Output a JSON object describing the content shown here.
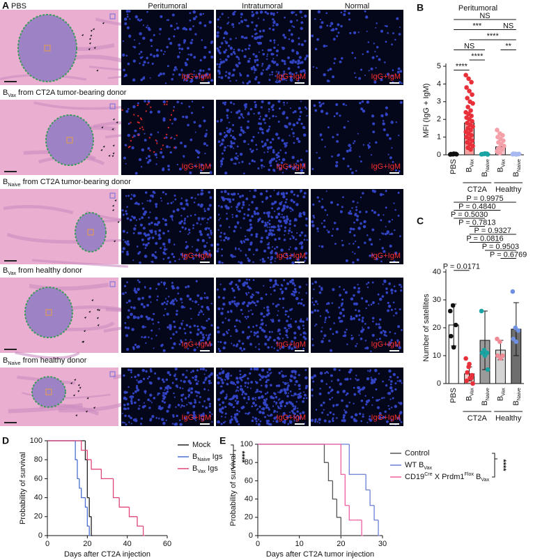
{
  "panel_labels": [
    "A",
    "B",
    "C",
    "D",
    "E"
  ],
  "figure_a": {
    "columns": [
      "Peritumoral",
      "Intratumoral",
      "Normal"
    ],
    "stain_label": "IgG+IgM",
    "rows": [
      [
        {
          "text": "PBS"
        }
      ],
      [
        {
          "text": "B"
        },
        {
          "sub": "Vax"
        },
        {
          "text": " from CT2A tumor-bearing donor"
        }
      ],
      [
        {
          "text": "B"
        },
        {
          "sub": "Naive"
        },
        {
          "text": " from CT2A tumor-bearing donor"
        }
      ],
      [
        {
          "text": "B"
        },
        {
          "sub": "Vax"
        },
        {
          "text": " from healthy donor"
        }
      ],
      [
        {
          "text": "B"
        },
        {
          "sub": "Naive"
        },
        {
          "text": " from healthy donor"
        }
      ]
    ]
  },
  "chart_data": [
    {
      "type": "bar",
      "title": "Peritumoral",
      "y_label": "MFI (IgG + IgM)",
      "categories": [
        [
          {
            "text": "PBS"
          }
        ],
        [
          {
            "text": "B"
          },
          {
            "sub": "Vax"
          }
        ],
        [
          {
            "text": "B"
          },
          {
            "sub": "Naive"
          }
        ],
        [
          {
            "text": "B"
          },
          {
            "sub": "Vax"
          }
        ],
        [
          {
            "text": "B"
          },
          {
            "sub": "Naive"
          }
        ]
      ],
      "groups": [
        "CT2A",
        "Healthy"
      ],
      "values": [
        0.05,
        1.8,
        0.05,
        0.45,
        0.05
      ],
      "colors": [
        "#ffffff",
        "#f3a0a0",
        "#ffffff",
        "#f7c6cc",
        "#ffffff"
      ],
      "point_colors": [
        "#111111",
        "#e8303a",
        "#1aa3a3",
        "#f4a0a8",
        "#a8b8f0"
      ],
      "points": [
        [
          0.02,
          0.03,
          0.05,
          0.04,
          0.06,
          0.03
        ],
        [
          4.5,
          4.3,
          4.1,
          3.8,
          3.6,
          3.4,
          3.2,
          3.0,
          2.9,
          2.7,
          2.5,
          2.4,
          2.3,
          2.2,
          2.1,
          2.0,
          1.9,
          1.8,
          1.7,
          1.6,
          1.5,
          1.4,
          1.3,
          1.2,
          1.1,
          1.0,
          0.9,
          0.8,
          0.7,
          0.6,
          0.5,
          0.4,
          0.3
        ],
        [
          0.03,
          0.05,
          0.06,
          0.04,
          0.07,
          0.02
        ],
        [
          1.4,
          1.2,
          1.1,
          1.0,
          0.9,
          0.8,
          0.7,
          0.6,
          0.5,
          0.4,
          0.3,
          0.2,
          0.1
        ],
        [
          0.03,
          0.05,
          0.04,
          0.06,
          0.02,
          0.05
        ]
      ],
      "significance": [
        "NS",
        "***",
        "****",
        "NS",
        "****",
        "****",
        "NS",
        "**"
      ],
      "ylim": [
        0,
        5
      ],
      "yticks": [
        0,
        1,
        2,
        3,
        4,
        5
      ]
    },
    {
      "type": "bar",
      "y_label": "Number of satellites",
      "categories": [
        [
          {
            "text": "PBS"
          }
        ],
        [
          {
            "text": "B"
          },
          {
            "sub": "Vax"
          }
        ],
        [
          {
            "text": "B"
          },
          {
            "sub": "Naive"
          }
        ],
        [
          {
            "text": "B"
          },
          {
            "sub": "Vax"
          }
        ],
        [
          {
            "text": "B"
          },
          {
            "sub": "Naive"
          }
        ]
      ],
      "groups": [
        "CT2A",
        "Healthy"
      ],
      "values": [
        21,
        3.5,
        15.5,
        12,
        19.5
      ],
      "errors": [
        7.5,
        2.5,
        10.5,
        3.5,
        9.5
      ],
      "colors": [
        "#ffffff",
        "#f5c6c6",
        "#9a9a9a",
        "#d4d4d4",
        "#6e6e6e"
      ],
      "point_colors": [
        "#111111",
        "#e8303a",
        "#1aa3a3",
        "#f08a94",
        "#6f8fe0"
      ],
      "points": [
        [
          26,
          28,
          21,
          17,
          13
        ],
        [
          9,
          6,
          2,
          1,
          7,
          3,
          4,
          2,
          0
        ],
        [
          26,
          12,
          11,
          11,
          10,
          5
        ],
        [
          16,
          15,
          10,
          10,
          9
        ],
        [
          33,
          20,
          19,
          16,
          15
        ]
      ],
      "significance": [
        "P = 0.9975",
        "P = 0.4840",
        "P = 0.5030",
        "P = 0.7813",
        "P = 0.9327",
        "P = 0.0816",
        "P = 0.9503",
        "P = 0.6769",
        "P = 0.0171"
      ],
      "ylim": [
        0,
        40
      ],
      "yticks": [
        0,
        10,
        20,
        30,
        40
      ]
    },
    {
      "type": "survival",
      "x_label": "Days after CT2A injection",
      "y_label": "Probability of survival",
      "series": [
        {
          "name": [
            {
              "text": "Mock"
            }
          ],
          "color": "#222222",
          "x": [
            0,
            19,
            20,
            21,
            22
          ],
          "values": [
            100,
            80,
            40,
            20,
            0
          ]
        },
        {
          "name": [
            {
              "text": "B"
            },
            {
              "sub": "Naive"
            },
            {
              "text": " Igs"
            }
          ],
          "color": "#4a6fd0",
          "x": [
            0,
            14,
            15,
            16,
            17,
            19,
            20,
            21
          ],
          "values": [
            100,
            80,
            60,
            50,
            40,
            30,
            10,
            0
          ]
        },
        {
          "name": [
            {
              "text": "B"
            },
            {
              "sub": "Vax"
            },
            {
              "text": " Igs"
            }
          ],
          "color": "#e0457b",
          "x": [
            0,
            17,
            20,
            22,
            27,
            33,
            36,
            41,
            45,
            48
          ],
          "values": [
            100,
            90,
            80,
            70,
            60,
            40,
            30,
            20,
            10,
            0
          ]
        }
      ],
      "significance": "****",
      "xlim": [
        0,
        60
      ],
      "xticks": [
        0,
        20,
        40,
        60
      ],
      "ylim": [
        0,
        100
      ],
      "yticks": [
        0,
        20,
        40,
        60,
        80,
        100
      ]
    },
    {
      "type": "survival",
      "x_label": "Days after CT2A tumor injection",
      "y_label": "Probability of survival",
      "series": [
        {
          "name": [
            {
              "text": "Control"
            }
          ],
          "color": "#555555",
          "x": [
            0,
            16,
            17,
            18,
            19,
            20
          ],
          "values": [
            100,
            80,
            60,
            40,
            20,
            0
          ]
        },
        {
          "name": [
            {
              "text": "WT B"
            },
            {
              "sub": "Vax"
            }
          ],
          "color": "#6a7fd6",
          "x": [
            0,
            22,
            26,
            27,
            28,
            29
          ],
          "values": [
            100,
            67,
            50,
            33,
            17,
            0
          ]
        },
        {
          "name": [
            {
              "text": "CD19"
            },
            {
              "sup": "Cre"
            },
            {
              "text": " X Prdm1"
            },
            {
              "sup": "Flox"
            },
            {
              "text": " B"
            },
            {
              "sub": "Vax"
            }
          ],
          "color": "#ef5fa0",
          "x": [
            0,
            20,
            21,
            22,
            25
          ],
          "values": [
            100,
            67,
            33,
            17,
            0
          ]
        }
      ],
      "significance": "****",
      "xlim": [
        0,
        30
      ],
      "xticks": [
        0,
        10,
        20,
        30
      ],
      "ylim": [
        0,
        100
      ],
      "yticks": [
        0,
        20,
        40,
        60,
        80,
        100
      ]
    }
  ]
}
